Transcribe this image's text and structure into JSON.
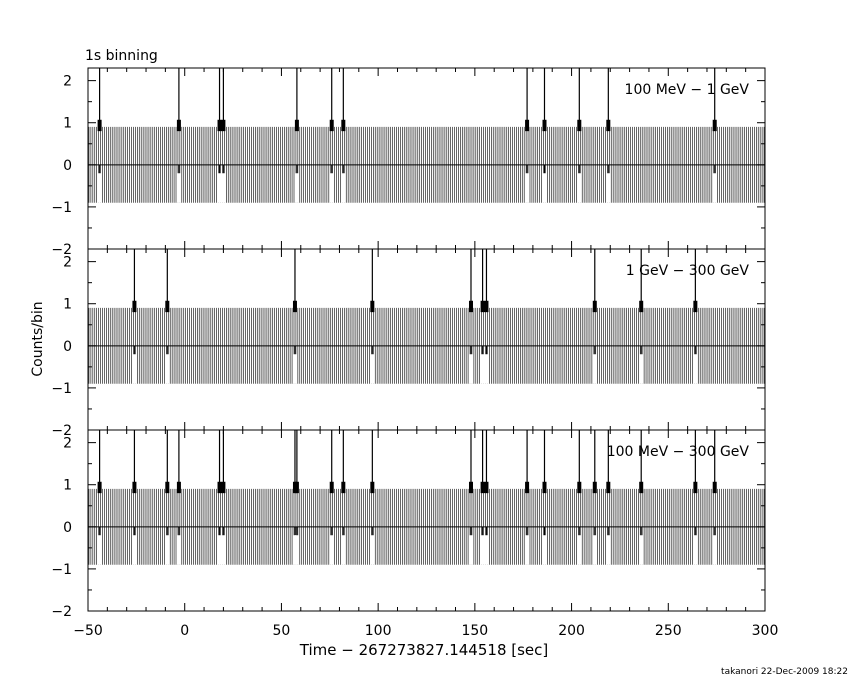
{
  "title": "1s binning",
  "footer": "takanori 22-Dec-2009 18:22",
  "colors": {
    "ink": "#000000",
    "background": "#ffffff"
  },
  "chart_data": {
    "type": "bar",
    "xlabel": "Time − 267273827.144518 [sec]",
    "ylabel": "Counts/bin",
    "xlim": [
      -50,
      300
    ],
    "ylim": [
      -2,
      2.3
    ],
    "grid": false,
    "xticks": [
      -50,
      0,
      50,
      100,
      150,
      200,
      250,
      300
    ],
    "yticks": [
      -2,
      -1,
      0,
      1,
      2
    ],
    "bin_width_sec": 1,
    "baseline_error_range": [
      -0.9,
      0.9
    ],
    "panels": [
      {
        "label": "100 MeV − 1 GeV",
        "events": [
          -44,
          -3,
          18,
          20,
          58,
          76,
          82,
          177,
          186,
          204,
          219,
          274
        ]
      },
      {
        "label": "1 GeV − 300 GeV",
        "events": [
          -26,
          -9,
          57,
          97,
          148,
          154,
          156,
          212,
          236,
          264
        ]
      },
      {
        "label": "100 MeV − 300 GeV",
        "events": [
          -44,
          -26,
          -9,
          -3,
          18,
          20,
          57,
          58,
          76,
          82,
          97,
          148,
          154,
          156,
          177,
          186,
          204,
          212,
          219,
          236,
          264,
          274
        ]
      }
    ]
  }
}
